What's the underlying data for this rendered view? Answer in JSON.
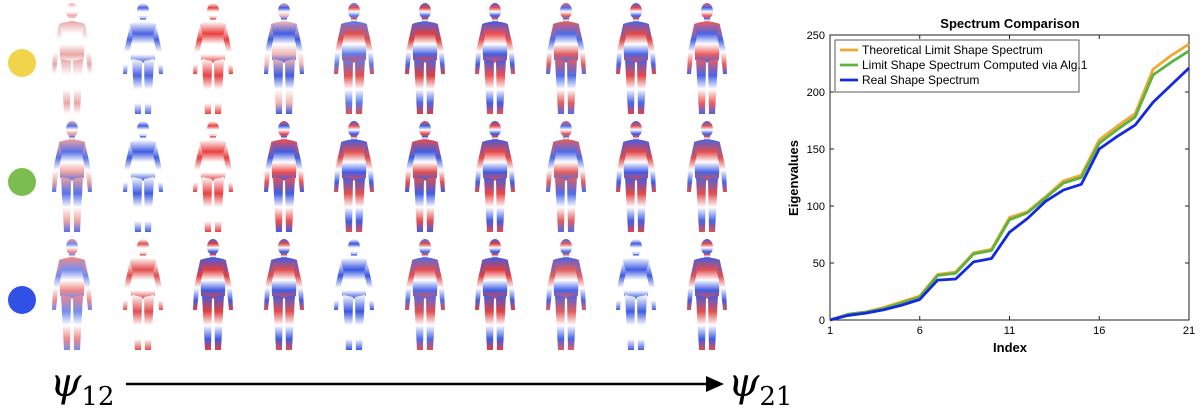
{
  "left_panel": {
    "start_label_base": "ψ",
    "start_label_sub": "12",
    "end_label_base": "ψ",
    "end_label_sub": "21",
    "row_colors": [
      "#f1d44a",
      "#7bbd4f",
      "#3050e8"
    ],
    "columns": 10
  },
  "chart_data": {
    "type": "line",
    "title": "Spectrum Comparison",
    "xlabel": "Index",
    "ylabel": "Eigenvalues",
    "xlim": [
      1,
      21
    ],
    "ylim": [
      0,
      250
    ],
    "xticks": [
      1,
      6,
      11,
      16,
      21
    ],
    "yticks": [
      0,
      50,
      100,
      150,
      200,
      250
    ],
    "grid": "off",
    "legend_position": "top-left",
    "x": [
      1,
      2,
      3,
      4,
      5,
      6,
      7,
      8,
      9,
      10,
      11,
      12,
      13,
      14,
      15,
      16,
      17,
      18,
      19,
      20,
      21
    ],
    "series": [
      {
        "name": "Theoretical Limit Shape Spectrum",
        "color": "#f0a830",
        "values": [
          0,
          5,
          7,
          11,
          16,
          21,
          40,
          42,
          59,
          62,
          90,
          95,
          108,
          122,
          127,
          158,
          170,
          181,
          220,
          232,
          242
        ]
      },
      {
        "name": "Limit Shape Spectrum Computed via Alg.1",
        "color": "#5cb340",
        "values": [
          0,
          5,
          7,
          10,
          15,
          20,
          39,
          41,
          58,
          61,
          88,
          94,
          107,
          120,
          125,
          155,
          167,
          178,
          215,
          226,
          236
        ]
      },
      {
        "name": "Real Shape Spectrum",
        "color": "#1428e0",
        "values": [
          0,
          4,
          6,
          9,
          13,
          18,
          35,
          36,
          51,
          54,
          77,
          89,
          104,
          114,
          119,
          150,
          161,
          171,
          191,
          206,
          221
        ]
      }
    ]
  }
}
